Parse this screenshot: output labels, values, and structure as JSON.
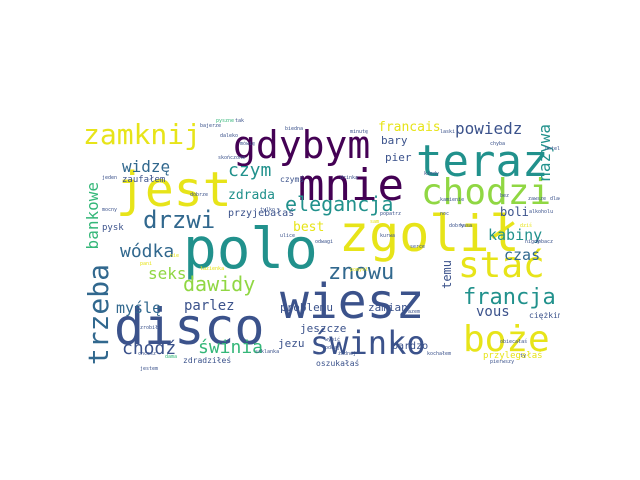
{
  "palette": {
    "dark_purple": "#440154",
    "indigo": "#3b528b",
    "blue": "#31688e",
    "teal": "#21918c",
    "green": "#35b779",
    "lime": "#90d743",
    "yellow": "#e7e419"
  },
  "words": {
    "polo": "polo",
    "zgolil": "zgolił",
    "wiesz": "wiesz",
    "disco": "disco",
    "jest": "jest",
    "teraz": "teraz",
    "mnie": "mnie",
    "gdybym": "gdybym",
    "chodzi": "chodzi",
    "stac": "stać",
    "swinko": "świnko",
    "boze": "boże",
    "zamknij": "zamknij",
    "drzwi": "drzwi",
    "elegancja": "elegancja",
    "trzeba": "trzeba",
    "znowu": "znowu",
    "francja": "francja",
    "wodka": "wódka",
    "dawidy": "dawidy",
    "czym": "czym",
    "widze": "widzę",
    "seks": "seks",
    "chodz": "chodź",
    "swinia": "świnia",
    "nazywa": "nazywa",
    "kabiny": "kabiny",
    "powiedz": "powiedz",
    "francais": "francais",
    "bankowe": "bankowe",
    "czas": "czas",
    "mysle": "myślę",
    "parlez": "parlez",
    "vous": "vous",
    "best": "best",
    "zdrada": "zdrada",
    "boli": "boli",
    "temu": "temu",
    "problemu": "problemu",
    "zamian": "zamian",
    "jezu": "jezu",
    "jeszcze": "jeszcze",
    "bardzo": "bardzo",
    "bary": "bary",
    "pier": "pier",
    "zaufalem": "zaufałem",
    "przyjebalas": "przyjebałaś",
    "pysk": "pysk",
    "czyms": "czymś",
    "zdradziles": "zdradziłeś",
    "oszukalas": "oszukałaś",
    "przylegalas": "przylegałaś",
    "ciezkim": "ciężkim",
    "pyszne": "pyszne",
    "jeden": "jeden",
    "alkoholu": "alkoholu",
    "dobry": "dobry",
    "kamienie": "kamienie",
    "odwagi": "odwagi",
    "dobrze": "dobrze",
    "drinka": "drinka",
    "kiedy": "kiedy",
    "zawsze": "zawsze",
    "daleko": "daleko",
    "mocny": "mocny",
    "tylko": "tylko",
    "dama": "dama",
    "laski": "laski",
    "serce": "serce",
    "dlaczego": "dlaczego",
    "bajerze": "bajerze",
    "pomysl": "pomysł",
    "chyba": "chyba",
    "nigdy": "nigdy",
    "zrobil": "zrobił",
    "razem": "razem",
    "biedna": "biedna",
    "kurwa": "kurwa",
    "popatrz": "popatrz",
    "szklanka": "szklanka",
    "jestem": "jestem",
    "chcesz": "chcesz",
    "pierwszy": "pierwszy",
    "obiecalas": "obiecałaś",
    "noc": "noc",
    "sam": "sam",
    "kochalem": "kochałem",
    "nie": "nie",
    "oddaj": "oddaj",
    "wypic": "wypić",
    "ulice": "ulice",
    "bez": "bez",
    "mowie": "mówię",
    "tak": "tak",
    "zadnej": "żadnej",
    "minute": "minutę",
    "lazienka": "łazienka",
    "ty": "ty",
    "kasa": "kasa",
    "skonczone": "skończone",
    "hotel": "hotel",
    "zobacz": "zobacz",
    "pani": "pani",
    "dzis": "dziś"
  }
}
